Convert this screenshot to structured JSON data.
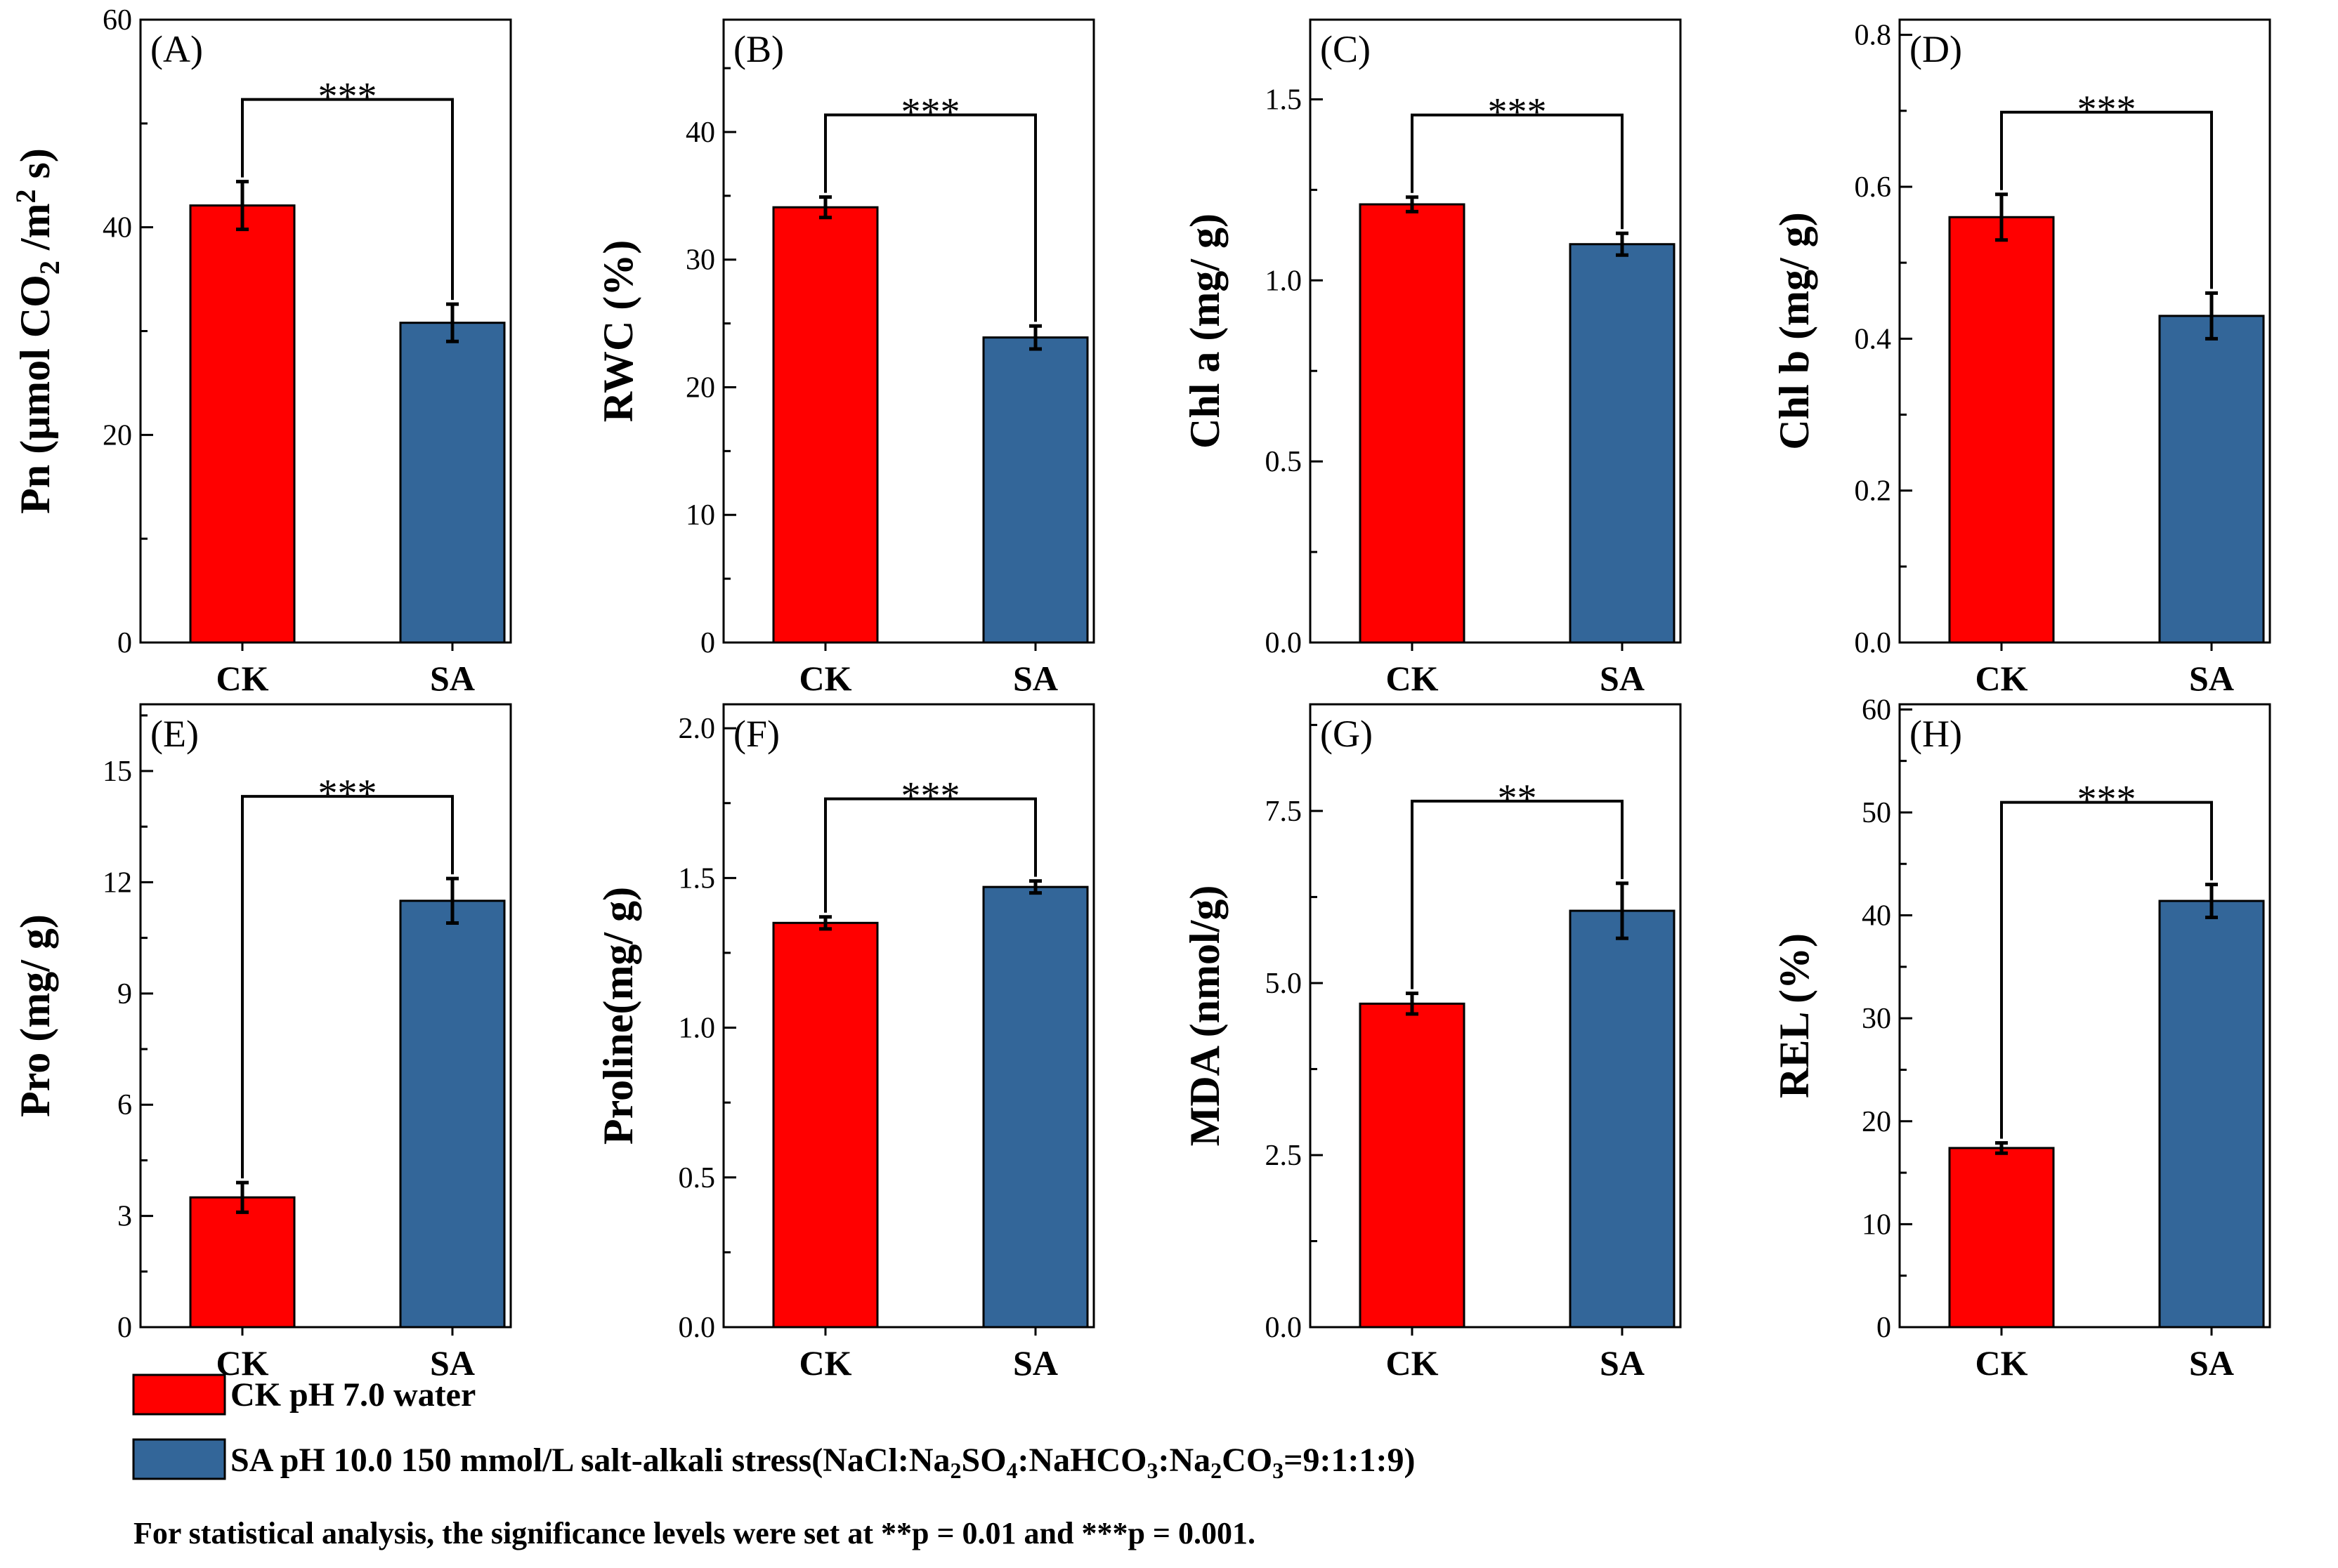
{
  "colors": {
    "ck": "#ff0000",
    "sa": "#336699",
    "axis": "#000000"
  },
  "chart_data": [
    {
      "type": "bar",
      "panel_label": "(A)",
      "ylabel_main": "Pn (μmol CO",
      "ylabel_sub": "2",
      "ylabel_mid": " /m",
      "ylabel_sup": "2",
      "ylabel_end": " s)",
      "categories": [
        "CK",
        "SA"
      ],
      "values": [
        42.1,
        30.8
      ],
      "errors": [
        2.3,
        1.8
      ],
      "ylim": [
        0,
        60
      ],
      "ticks": [
        0,
        20,
        40,
        60
      ],
      "tick_labels": [
        "0",
        "20",
        "40",
        "60"
      ],
      "significance": "***"
    },
    {
      "type": "bar",
      "panel_label": "(B)",
      "ylabel_main": "RWC (%)",
      "categories": [
        "CK",
        "SA"
      ],
      "values": [
        34.1,
        23.9
      ],
      "errors": [
        0.8,
        0.9
      ],
      "ylim": [
        0,
        48.8
      ],
      "ticks": [
        0,
        10,
        20,
        30,
        40
      ],
      "tick_labels": [
        "0",
        "10",
        "20",
        "30",
        "40"
      ],
      "significance": "***"
    },
    {
      "type": "bar",
      "panel_label": "(C)",
      "ylabel_main": "Chl a (mg/ g)",
      "categories": [
        "CK",
        "SA"
      ],
      "values": [
        1.21,
        1.1
      ],
      "errors": [
        0.02,
        0.03
      ],
      "ylim": [
        0,
        1.72
      ],
      "ticks": [
        0,
        0.5,
        1.0,
        1.5
      ],
      "tick_labels": [
        "0.0",
        "0.5",
        "1.0",
        "1.5"
      ],
      "significance": "***"
    },
    {
      "type": "bar",
      "panel_label": "(D)",
      "ylabel_main": "Chl b (mg/ g)",
      "categories": [
        "CK",
        "SA"
      ],
      "values": [
        0.56,
        0.43
      ],
      "errors": [
        0.03,
        0.03
      ],
      "ylim": [
        0,
        0.82
      ],
      "ticks": [
        0,
        0.2,
        0.4,
        0.6,
        0.8
      ],
      "tick_labels": [
        "0.0",
        "0.2",
        "0.4",
        "0.6",
        "0.8"
      ],
      "significance": "***"
    },
    {
      "type": "bar",
      "panel_label": "(E)",
      "ylabel_main": "Pro (mg/ g)",
      "categories": [
        "CK",
        "SA"
      ],
      "values": [
        3.5,
        11.5
      ],
      "errors": [
        0.4,
        0.6
      ],
      "ylim": [
        0,
        16.8
      ],
      "ticks": [
        0,
        3,
        6,
        9,
        12,
        15
      ],
      "tick_labels": [
        "0",
        "3",
        "6",
        "9",
        "12",
        "15"
      ],
      "significance": "***"
    },
    {
      "type": "bar",
      "panel_label": "(F)",
      "ylabel_main": "Proline(mg/ g)",
      "categories": [
        "CK",
        "SA"
      ],
      "values": [
        1.35,
        1.47
      ],
      "errors": [
        0.02,
        0.02
      ],
      "ylim": [
        0,
        2.08
      ],
      "ticks": [
        0,
        0.5,
        1.0,
        1.5,
        2.0
      ],
      "tick_labels": [
        "0.0",
        "0.5",
        "1.0",
        "1.5",
        "2.0"
      ],
      "significance": "***"
    },
    {
      "type": "bar",
      "panel_label": "(G)",
      "ylabel_main": "MDA (nmol/g)",
      "categories": [
        "CK",
        "SA"
      ],
      "values": [
        4.7,
        6.05
      ],
      "errors": [
        0.15,
        0.4
      ],
      "ylim": [
        0,
        9.05
      ],
      "ticks": [
        0,
        2.5,
        5.0,
        7.5
      ],
      "tick_labels": [
        "0.0",
        "2.5",
        "5.0",
        "7.5"
      ],
      "significance": "**"
    },
    {
      "type": "bar",
      "panel_label": "(H)",
      "ylabel_main": "REL (%)",
      "categories": [
        "CK",
        "SA"
      ],
      "values": [
        17.4,
        41.4
      ],
      "errors": [
        0.5,
        1.6
      ],
      "ylim": [
        0,
        60.5
      ],
      "ticks": [
        0,
        10,
        20,
        30,
        40,
        50,
        60
      ],
      "tick_labels": [
        "0",
        "10",
        "20",
        "30",
        "40",
        "50",
        "60"
      ],
      "significance": "***"
    }
  ],
  "legend": {
    "ck_label": "CK pH 7.0 water",
    "sa_label_prefix": "SA pH 10.0 150 mmol/L salt-alkali stress(NaCl:Na",
    "sa_sub_1": "2",
    "sa_mid_1": "SO",
    "sa_sub_2": "4",
    "sa_mid_2": ":NaHCO",
    "sa_sub_3": "3",
    "sa_mid_3": ":Na",
    "sa_sub_4": "2",
    "sa_mid_4": "CO",
    "sa_sub_5": "3",
    "sa_label_end": "=9:1:1:9)",
    "note": "For statistical analysis, the significance levels were set at **p = 0.01 and ***p = 0.001."
  }
}
